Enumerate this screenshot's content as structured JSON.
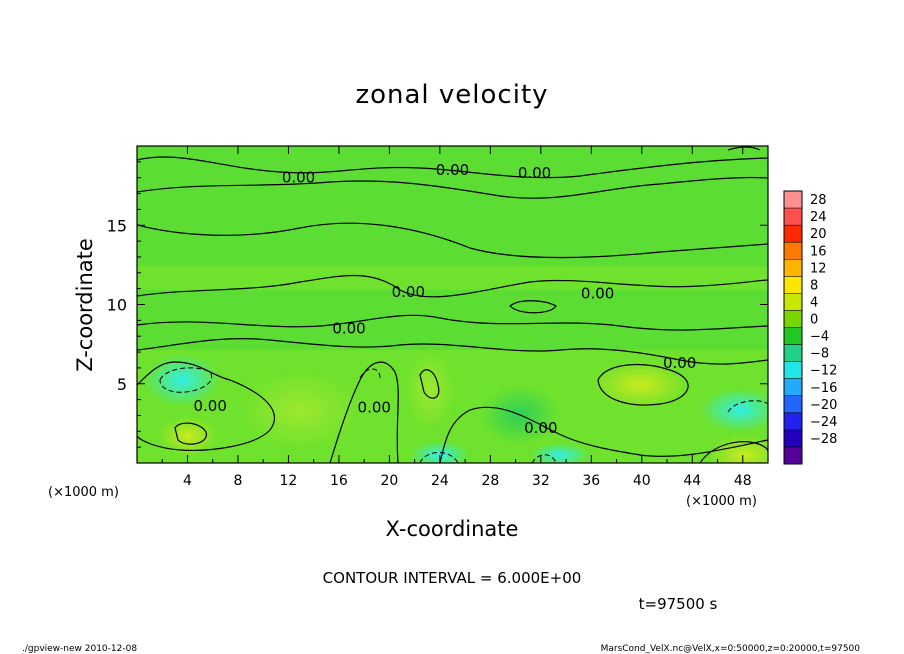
{
  "chart_data": {
    "type": "heatmap",
    "title": "zonal velocity",
    "xlabel": "X-coordinate",
    "ylabel": "Z-coordinate",
    "xunit_left": "(×1000 m)",
    "xunit_right": "(×1000 m)",
    "xlim": [
      0,
      50
    ],
    "ylim": [
      0,
      20
    ],
    "xticks": [
      "4",
      "8",
      "12",
      "16",
      "20",
      "24",
      "28",
      "32",
      "36",
      "40",
      "44",
      "48"
    ],
    "xtick_values": [
      4,
      8,
      12,
      16,
      20,
      24,
      28,
      32,
      36,
      40,
      44,
      48
    ],
    "yticks": [
      "5",
      "10",
      "15"
    ],
    "ytick_values": [
      5,
      10,
      15
    ],
    "contour_labels": [
      {
        "text": "0.00",
        "x": 12.8,
        "z": 18.0
      },
      {
        "text": "0.00",
        "x": 25.0,
        "z": 18.5
      },
      {
        "text": "0.00",
        "x": 31.5,
        "z": 18.3
      },
      {
        "text": "0.00",
        "x": 21.5,
        "z": 10.8
      },
      {
        "text": "0.00",
        "x": 36.5,
        "z": 10.7
      },
      {
        "text": "0.00",
        "x": 16.8,
        "z": 8.5
      },
      {
        "text": "0.00",
        "x": 43.0,
        "z": 6.3
      },
      {
        "text": "0.00",
        "x": 5.8,
        "z": 3.6
      },
      {
        "text": "0.00",
        "x": 18.8,
        "z": 3.5
      },
      {
        "text": "0.00",
        "x": 32.0,
        "z": 2.2
      }
    ],
    "colorbar": {
      "labels": [
        "28",
        "24",
        "20",
        "16",
        "12",
        "8",
        "4",
        "0",
        "−4",
        "−8",
        "−12",
        "−16",
        "−20",
        "−24",
        "−28"
      ],
      "colors": [
        "#ff9090",
        "#ff5050",
        "#ff2a00",
        "#ff7a00",
        "#ffb400",
        "#ffe600",
        "#c8e600",
        "#7ad600",
        "#22c822",
        "#22d088",
        "#22e6e6",
        "#22aaff",
        "#2266ff",
        "#2222ee",
        "#2200bb",
        "#550099"
      ]
    },
    "contour_interval_text": "CONTOUR INTERVAL = 6.000E+00",
    "time_text": "t=97500 s"
  },
  "footer": {
    "left": "./gpview-new   2010-12-08",
    "right": "MarsCond_VelX.nc@VelX,x=0:50000,z=0:20000,t=97500"
  }
}
